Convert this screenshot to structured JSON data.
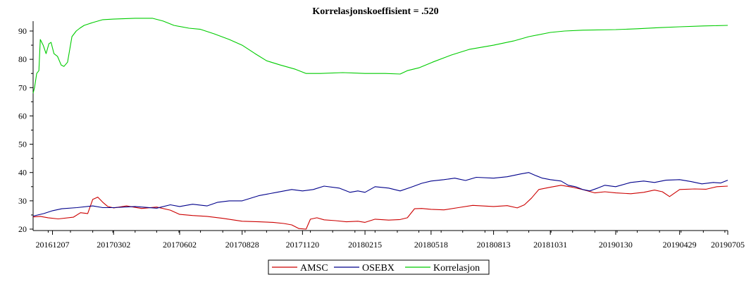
{
  "chart_data": {
    "type": "line",
    "title": "Korrelasjonskoeffisient =  .520",
    "xlabel": "",
    "ylabel": "",
    "ylim": [
      20,
      94
    ],
    "yticks": [
      20,
      30,
      40,
      50,
      60,
      70,
      80,
      90
    ],
    "x_tick_labels": [
      "20161207",
      "20170302",
      "20170602",
      "20170828",
      "20171120",
      "20180215",
      "20180518",
      "20180813",
      "20181031",
      "20190130",
      "20190429",
      "20190705"
    ],
    "x_tick_dates": [
      "2016-12-07",
      "2017-03-02",
      "2017-06-02",
      "2017-08-28",
      "2017-11-20",
      "2018-02-15",
      "2018-05-18",
      "2018-08-13",
      "2018-10-31",
      "2019-01-30",
      "2019-04-29",
      "2019-07-05"
    ],
    "x_range": [
      "2016-11-10",
      "2019-07-05"
    ],
    "grid": false,
    "legend_position": "bottom",
    "series": [
      {
        "name": "AMSC",
        "color": "#cc0000",
        "x": [
          "2016-11-10",
          "2016-11-20",
          "2016-12-01",
          "2016-12-15",
          "2017-01-05",
          "2017-01-15",
          "2017-01-25",
          "2017-02-01",
          "2017-02-08",
          "2017-02-15",
          "2017-02-22",
          "2017-03-02",
          "2017-03-20",
          "2017-04-10",
          "2017-05-01",
          "2017-05-20",
          "2017-06-02",
          "2017-06-20",
          "2017-07-10",
          "2017-08-01",
          "2017-08-28",
          "2017-09-20",
          "2017-10-10",
          "2017-10-25",
          "2017-11-05",
          "2017-11-15",
          "2017-11-25",
          "2017-12-01",
          "2017-12-10",
          "2017-12-20",
          "2018-01-05",
          "2018-01-20",
          "2018-02-05",
          "2018-02-15",
          "2018-03-01",
          "2018-03-20",
          "2018-04-05",
          "2018-04-15",
          "2018-04-25",
          "2018-05-05",
          "2018-05-18",
          "2018-06-05",
          "2018-06-25",
          "2018-07-15",
          "2018-08-13",
          "2018-09-01",
          "2018-09-15",
          "2018-09-25",
          "2018-10-05",
          "2018-10-15",
          "2018-10-31",
          "2018-11-15",
          "2018-12-01",
          "2018-12-15",
          "2019-01-01",
          "2019-01-15",
          "2019-01-30",
          "2019-02-20",
          "2019-03-10",
          "2019-03-25",
          "2019-04-05",
          "2019-04-15",
          "2019-04-29",
          "2019-05-20",
          "2019-06-05",
          "2019-06-20",
          "2019-07-05"
        ],
        "values": [
          24.3,
          24.5,
          24.0,
          23.6,
          24.2,
          25.8,
          25.5,
          30.5,
          31.3,
          29.5,
          28.0,
          27.5,
          28.2,
          27.3,
          27.8,
          26.7,
          25.2,
          24.8,
          24.5,
          23.8,
          22.8,
          22.6,
          22.4,
          22.0,
          21.5,
          20.2,
          20.0,
          23.5,
          24.0,
          23.3,
          23.0,
          22.6,
          22.8,
          22.4,
          23.5,
          23.2,
          23.4,
          24.0,
          27.2,
          27.3,
          27.0,
          26.8,
          27.6,
          28.4,
          28.0,
          28.3,
          27.5,
          28.6,
          31.0,
          34.0,
          34.8,
          35.5,
          34.8,
          34.0,
          32.8,
          33.2,
          32.8,
          32.5,
          33.0,
          33.8,
          33.2,
          31.5,
          34.0,
          34.2,
          34.1,
          35.0,
          35.2
        ]
      },
      {
        "name": "OSEBX",
        "color": "#00008b",
        "x": [
          "2016-11-10",
          "2016-11-25",
          "2016-12-07",
          "2016-12-20",
          "2017-01-10",
          "2017-02-01",
          "2017-02-15",
          "2017-03-02",
          "2017-04-01",
          "2017-05-01",
          "2017-05-20",
          "2017-06-02",
          "2017-06-20",
          "2017-07-10",
          "2017-07-25",
          "2017-08-10",
          "2017-08-28",
          "2017-09-20",
          "2017-10-15",
          "2017-11-05",
          "2017-11-20",
          "2017-12-05",
          "2017-12-20",
          "2018-01-10",
          "2018-01-25",
          "2018-02-05",
          "2018-02-15",
          "2018-03-01",
          "2018-03-20",
          "2018-04-05",
          "2018-04-20",
          "2018-05-05",
          "2018-05-18",
          "2018-06-05",
          "2018-06-20",
          "2018-07-05",
          "2018-07-20",
          "2018-08-13",
          "2018-09-01",
          "2018-09-20",
          "2018-10-01",
          "2018-10-10",
          "2018-10-20",
          "2018-10-31",
          "2018-11-15",
          "2018-11-25",
          "2018-12-05",
          "2018-12-15",
          "2018-12-25",
          "2019-01-05",
          "2019-01-15",
          "2019-01-30",
          "2019-02-20",
          "2019-03-10",
          "2019-03-25",
          "2019-04-10",
          "2019-04-29",
          "2019-05-15",
          "2019-05-30",
          "2019-06-15",
          "2019-06-25",
          "2019-07-05"
        ],
        "values": [
          24.6,
          25.5,
          26.5,
          27.2,
          27.6,
          28.2,
          27.6,
          27.6,
          28.0,
          27.4,
          28.6,
          28.0,
          28.8,
          28.2,
          29.5,
          30.0,
          30.0,
          31.8,
          33.0,
          34.0,
          33.5,
          34.0,
          35.2,
          34.5,
          33.0,
          33.5,
          33.0,
          35.0,
          34.5,
          33.5,
          34.8,
          36.2,
          37.0,
          37.5,
          38.0,
          37.2,
          38.3,
          38.0,
          38.5,
          39.5,
          40.0,
          39.0,
          38.0,
          37.5,
          37.0,
          35.5,
          35.0,
          34.0,
          33.5,
          34.5,
          35.5,
          35.0,
          36.5,
          37.0,
          36.5,
          37.3,
          37.5,
          36.8,
          36.0,
          36.5,
          36.3,
          37.3
        ]
      },
      {
        "name": "Korrelasjon",
        "color": "#00cc00",
        "x": [
          "2016-11-10",
          "2016-11-12",
          "2016-11-15",
          "2016-11-18",
          "2016-11-20",
          "2016-11-24",
          "2016-11-28",
          "2016-12-02",
          "2016-12-05",
          "2016-12-09",
          "2016-12-14",
          "2016-12-19",
          "2016-12-23",
          "2016-12-28",
          "2017-01-03",
          "2017-01-09",
          "2017-01-14",
          "2017-01-20",
          "2017-02-01",
          "2017-02-15",
          "2017-03-02",
          "2017-04-01",
          "2017-04-25",
          "2017-05-10",
          "2017-05-25",
          "2017-06-15",
          "2017-07-01",
          "2017-07-20",
          "2017-08-10",
          "2017-08-28",
          "2017-09-15",
          "2017-10-01",
          "2017-10-20",
          "2017-11-10",
          "2017-11-25",
          "2017-12-15",
          "2018-01-15",
          "2018-02-15",
          "2018-03-15",
          "2018-04-05",
          "2018-04-15",
          "2018-05-01",
          "2018-05-20",
          "2018-06-15",
          "2018-07-10",
          "2018-08-13",
          "2018-09-10",
          "2018-10-01",
          "2018-10-31",
          "2018-11-20",
          "2018-12-15",
          "2019-01-30",
          "2019-03-01",
          "2019-04-01",
          "2019-04-29",
          "2019-06-01",
          "2019-07-05"
        ],
        "values": [
          68.0,
          70.0,
          75.0,
          76.0,
          87.0,
          85.0,
          82.0,
          85.5,
          86.0,
          82.0,
          81.0,
          78.0,
          77.5,
          79.0,
          88.0,
          90.0,
          91.0,
          92.0,
          93.0,
          94.0,
          94.2,
          94.5,
          94.5,
          93.5,
          92.0,
          91.0,
          90.6,
          89.0,
          87.0,
          85.0,
          82.0,
          79.5,
          78.0,
          76.5,
          75.0,
          75.0,
          75.3,
          75.0,
          75.0,
          74.8,
          76.0,
          77.0,
          79.0,
          81.5,
          83.5,
          85.0,
          86.5,
          88.0,
          89.5,
          90.0,
          90.3,
          90.5,
          90.8,
          91.2,
          91.5,
          91.8,
          92.0
        ]
      }
    ]
  }
}
